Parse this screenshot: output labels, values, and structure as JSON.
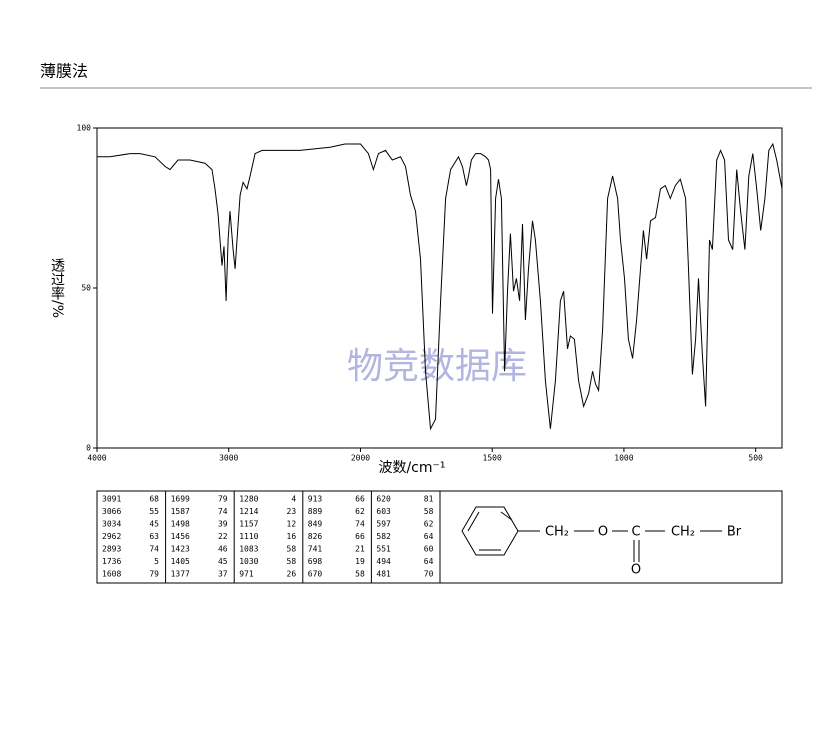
{
  "heading": {
    "title": "薄膜法"
  },
  "chart_data": {
    "type": "line",
    "x_label": "波数/cm⁻¹",
    "y_label": "透过率/%",
    "watermark": "物竞数据库",
    "xlim": [
      4000,
      400
    ],
    "x_scale_break": 2000,
    "xticks": [
      4000,
      3000,
      2000,
      1500,
      1000,
      500
    ],
    "ylim": [
      0,
      100
    ],
    "yticks": [
      0,
      50,
      100
    ],
    "color": "#000000",
    "x": [
      4000,
      3901,
      3749,
      3673,
      3560,
      3484,
      3446,
      3385,
      3294,
      3180,
      3127,
      3104,
      3081,
      3066,
      3051,
      3036,
      3020,
      3005,
      2990,
      2967,
      2952,
      2937,
      2914,
      2891,
      2861,
      2838,
      2800,
      2747,
      2610,
      2459,
      2231,
      2117,
      2000,
      1970,
      1951,
      1932,
      1905,
      1879,
      1848,
      1829,
      1810,
      1791,
      1772,
      1753,
      1734,
      1715,
      1696,
      1677,
      1658,
      1628,
      1613,
      1598,
      1590,
      1579,
      1563,
      1544,
      1525,
      1514,
      1506,
      1499,
      1487,
      1476,
      1465,
      1453,
      1442,
      1431,
      1419,
      1408,
      1396,
      1385,
      1374,
      1362,
      1347,
      1336,
      1317,
      1298,
      1279,
      1260,
      1241,
      1229,
      1214,
      1203,
      1188,
      1172,
      1153,
      1134,
      1119,
      1108,
      1096,
      1081,
      1062,
      1043,
      1024,
      1013,
      998,
      983,
      967,
      952,
      937,
      926,
      914,
      899,
      880,
      861,
      843,
      824,
      805,
      786,
      766,
      755,
      740,
      728,
      717,
      702,
      690,
      675,
      664,
      648,
      633,
      618,
      603,
      587,
      572,
      557,
      541,
      526,
      511,
      496,
      481,
      465,
      450,
      435,
      420,
      400
    ],
    "y": [
      91,
      91,
      92,
      92,
      91,
      88,
      87,
      90,
      90,
      89,
      87,
      81,
      73,
      65,
      57,
      63,
      46,
      65,
      74,
      62,
      56,
      65,
      79,
      83,
      81,
      85,
      92,
      93,
      93,
      93,
      94,
      95,
      95,
      92,
      87,
      92,
      93,
      90,
      91,
      88,
      79,
      74,
      59,
      24,
      6,
      9,
      46,
      78,
      87,
      91,
      88,
      82,
      85,
      90,
      92,
      92,
      91,
      90,
      87,
      42,
      78,
      84,
      78,
      24,
      49,
      67,
      49,
      53,
      46,
      70,
      40,
      56,
      71,
      65,
      46,
      21,
      6,
      21,
      46,
      49,
      31,
      35,
      34,
      21,
      13,
      17,
      24,
      20,
      18,
      37,
      78,
      85,
      78,
      65,
      53,
      34,
      28,
      40,
      56,
      68,
      59,
      71,
      72,
      81,
      82,
      78,
      82,
      84,
      78,
      56,
      23,
      34,
      53,
      29,
      13,
      65,
      62,
      90,
      93,
      90,
      65,
      62,
      87,
      74,
      62,
      85,
      92,
      81,
      68,
      78,
      93,
      95,
      90,
      81
    ]
  },
  "peak_table": [
    [
      [
        3091,
        68
      ],
      [
        3066,
        55
      ],
      [
        3034,
        45
      ],
      [
        2962,
        63
      ],
      [
        2893,
        74
      ],
      [
        1736,
        5
      ],
      [
        1608,
        79
      ]
    ],
    [
      [
        1699,
        79
      ],
      [
        1587,
        74
      ],
      [
        1498,
        39
      ],
      [
        1456,
        22
      ],
      [
        1423,
        46
      ],
      [
        1405,
        45
      ],
      [
        1377,
        37
      ]
    ],
    [
      [
        1280,
        4
      ],
      [
        1214,
        23
      ],
      [
        1157,
        12
      ],
      [
        1110,
        16
      ],
      [
        1083,
        58
      ],
      [
        1030,
        58
      ],
      [
        971,
        26
      ]
    ],
    [
      [
        913,
        66
      ],
      [
        889,
        62
      ],
      [
        849,
        74
      ],
      [
        826,
        66
      ],
      [
        741,
        21
      ],
      [
        698,
        19
      ],
      [
        670,
        58
      ]
    ],
    [
      [
        620,
        81
      ],
      [
        603,
        58
      ],
      [
        597,
        62
      ],
      [
        582,
        64
      ],
      [
        551,
        60
      ],
      [
        494,
        64
      ],
      [
        481,
        70
      ]
    ]
  ],
  "structure": {
    "labels": [
      "CH₂",
      "O",
      "C",
      "CH₂",
      "Br",
      "O"
    ]
  }
}
